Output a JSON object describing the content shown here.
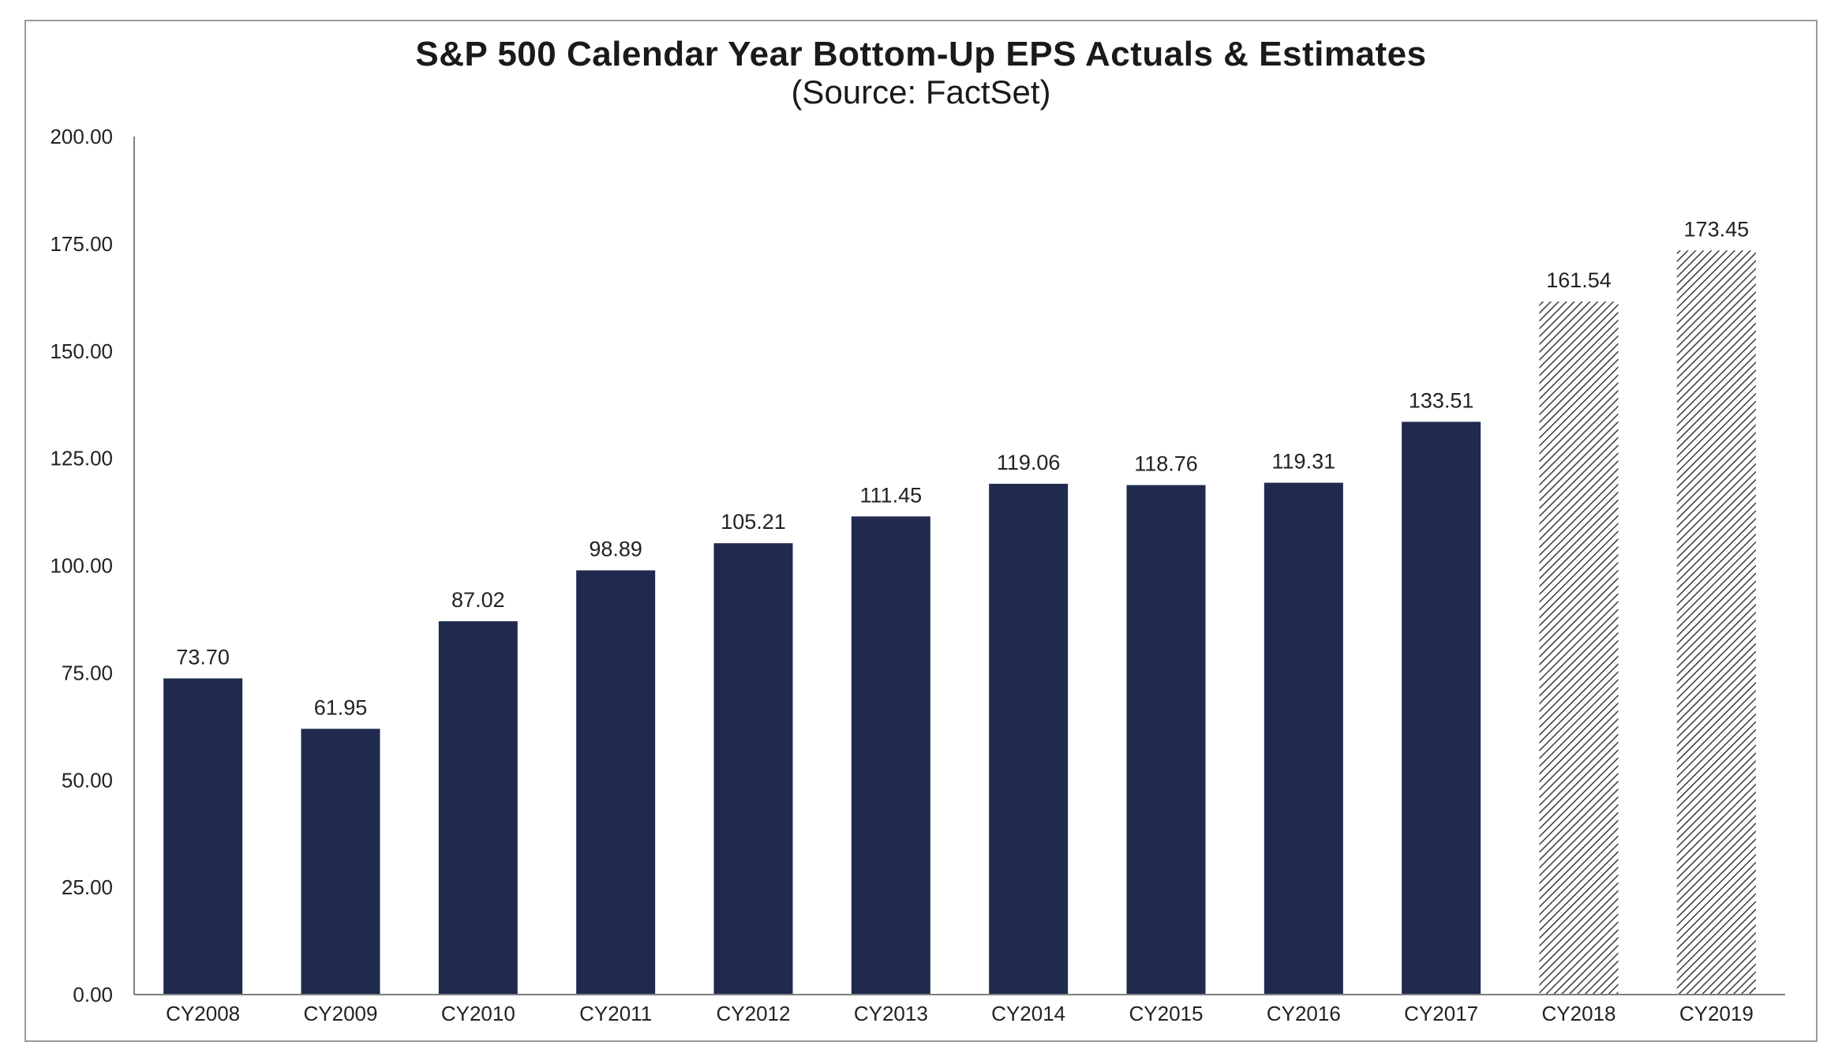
{
  "chart_data": {
    "type": "bar",
    "title": "S&P 500 Calendar Year Bottom-Up EPS Actuals & Estimates",
    "subtitle": "(Source: FactSet)",
    "xlabel": "",
    "ylabel": "",
    "ylim": [
      0,
      200
    ],
    "yticks": [
      "0.00",
      "25.00",
      "50.00",
      "75.00",
      "100.00",
      "125.00",
      "150.00",
      "175.00",
      "200.00"
    ],
    "categories": [
      "CY2008",
      "CY2009",
      "CY2010",
      "CY2011",
      "CY2012",
      "CY2013",
      "CY2014",
      "CY2015",
      "CY2016",
      "CY2017",
      "CY2018",
      "CY2019"
    ],
    "values": [
      73.7,
      61.95,
      87.02,
      98.89,
      105.21,
      111.45,
      119.06,
      118.76,
      119.31,
      133.51,
      161.54,
      173.45
    ],
    "value_labels": [
      "73.70",
      "61.95",
      "87.02",
      "98.89",
      "105.21",
      "111.45",
      "119.06",
      "118.76",
      "119.31",
      "133.51",
      "161.54",
      "173.45"
    ],
    "bar_styles": [
      "solid",
      "solid",
      "solid",
      "solid",
      "solid",
      "solid",
      "solid",
      "solid",
      "solid",
      "solid",
      "hatched",
      "hatched"
    ],
    "grid": false,
    "legend": "none",
    "colors": {
      "bar": "#1f2a4e",
      "hatch": "#3a3a3a",
      "axis": "#7f7f7f"
    }
  }
}
